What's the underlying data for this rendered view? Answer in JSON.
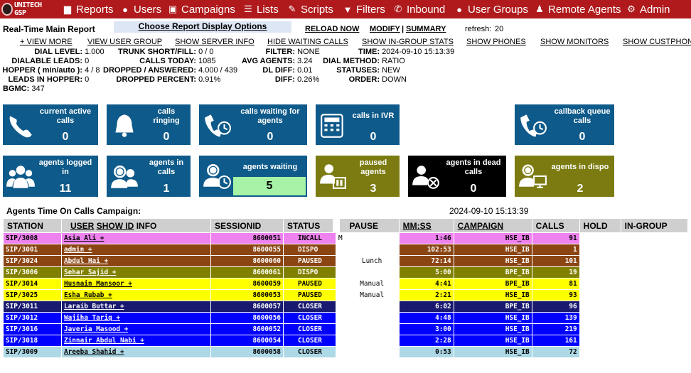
{
  "logo_text": "UNITECH GSP",
  "nav": [
    {
      "label": "Reports",
      "icon": "bar-chart-icon"
    },
    {
      "label": "Users",
      "icon": "users-icon"
    },
    {
      "label": "Campaigns",
      "icon": "campaigns-icon"
    },
    {
      "label": "Lists",
      "icon": "list-icon"
    },
    {
      "label": "Scripts",
      "icon": "edit-icon"
    },
    {
      "label": "Filters",
      "icon": "filter-icon"
    },
    {
      "label": "Inbound",
      "icon": "phone-icon"
    },
    {
      "label": "User Groups",
      "icon": "users-icon"
    },
    {
      "label": "Remote Agents",
      "icon": "remote-agent-icon"
    },
    {
      "label": "Admin",
      "icon": "gear-icon"
    }
  ],
  "report": {
    "title": "Real-Time Main Report",
    "options_btn": "Choose Report Display Options",
    "reload": "RELOAD NOW",
    "modify": "MODIFY",
    "sep": "|",
    "summary": "SUMMARY",
    "refresh_label": "refresh:",
    "refresh_val": "20",
    "links": [
      "+ VIEW MORE",
      "VIEW USER GROUP",
      "SHOW SERVER INFO",
      "HIDE WAITING CALLS",
      "SHOW IN-GROUP STATS",
      "SHOW PHONES",
      "SHOW MONITORS",
      "SHOW CUSTPHONE"
    ]
  },
  "stats": {
    "col1": [
      {
        "k": "DIAL LEVEL:",
        "v": "1.000"
      },
      {
        "k": "DIALABLE LEADS:",
        "v": "0"
      },
      {
        "k": "HOPPER ( min/auto ):",
        "v": "4 / 8"
      },
      {
        "k": "LEADS IN HOPPER:",
        "v": "0"
      }
    ],
    "col2": [
      {
        "k": "TRUNK SHORT/FILL:",
        "v": "0 / 0"
      },
      {
        "k": "CALLS TODAY:",
        "v": "1085"
      },
      {
        "k": "DROPPED / ANSWERED:",
        "v": "4.000 / 439"
      },
      {
        "k": "DROPPED PERCENT:",
        "v": "0.91%"
      }
    ],
    "col3": [
      {
        "k": "FILTER:",
        "v": "NONE"
      },
      {
        "k": "AVG AGENTS:",
        "v": "3.24"
      },
      {
        "k": "DL DIFF:",
        "v": "0.01"
      },
      {
        "k": "DIFF:",
        "v": "0.26%"
      }
    ],
    "col4": [
      {
        "k": "TIME:",
        "v": "2024-09-10 15:13:39"
      },
      {
        "k": "DIAL METHOD:",
        "v": "RATIO"
      },
      {
        "k": "STATUSES:",
        "v": "NEW"
      },
      {
        "k": "ORDER:",
        "v": "DOWN"
      }
    ],
    "bgmc_k": "BGMC:",
    "bgmc_v": "347"
  },
  "tiles_row1": [
    {
      "label": "current active calls",
      "value": "0",
      "icon": "phone-handset-icon"
    },
    {
      "label": "calls ringing",
      "value": "0",
      "icon": "bell-icon"
    },
    {
      "label": "calls waiting for agents",
      "value": "0",
      "icon": "phone-clock-icon"
    },
    {
      "label": "calls in IVR",
      "value": "0",
      "icon": "ivr-keypad-icon"
    },
    {
      "label": "callback queue calls",
      "value": "0",
      "icon": "phone-clock-icon"
    }
  ],
  "tiles_row2": [
    {
      "label": "agents logged in",
      "value": "11",
      "icon": "agents-group-icon"
    },
    {
      "label": "agents in calls",
      "value": "1",
      "icon": "agents-headset-icon"
    },
    {
      "label": "agents waiting",
      "value": "5",
      "icon": "agent-clock-icon"
    },
    {
      "label": "paused agents",
      "value": "3",
      "icon": "agent-pause-icon"
    },
    {
      "label": "agents in dead calls",
      "value": "0",
      "icon": "agent-dead-icon"
    },
    {
      "label": "agents in dispo",
      "value": "2",
      "icon": "agent-dispo-icon"
    }
  ],
  "agents_title": "Agents Time On Calls Campaign:",
  "agents_time": "2024-09-10 15:13:39",
  "table_headers": {
    "station": "STATION",
    "user": "USER",
    "show_id": "SHOW ID",
    "info": "INFO",
    "session": "SESSIONID",
    "status": "STATUS",
    "pause": "PAUSE",
    "mmss": "MM:SS",
    "campaign": "CAMPAIGN",
    "calls": "CALLS",
    "hold": "HOLD",
    "ingroup": "IN-GROUP"
  },
  "colors": {
    "incall": "#ee82ee",
    "dispo": "#8b4513",
    "paused": "#808000",
    "yellow": "#ffff00",
    "closer_dark": "#191970",
    "closer_blue": "#0000ff",
    "closer_light": "#add8e6"
  },
  "agents": [
    {
      "station": "SIP/3008",
      "user": "Asia Ali +",
      "session": "8600051",
      "status": "INCALL",
      "flag": "M",
      "pause": "",
      "mmss": "1:46",
      "campaign": "HSE_IB",
      "calls": "91",
      "bg": "#ee82ee",
      "fg": "#000"
    },
    {
      "station": "SIP/3001",
      "user": "admin +",
      "session": "8600055",
      "status": "DISPO",
      "flag": "",
      "pause": "",
      "mmss": "102:53",
      "campaign": "HSE_IB",
      "calls": "1",
      "bg": "#8b4513",
      "fg": "#fff"
    },
    {
      "station": "SIP/3024",
      "user": "Abdul Hai +",
      "session": "8600060",
      "status": "PAUSED",
      "flag": "",
      "pause": "Lunch",
      "mmss": "72:14",
      "campaign": "HSE_IB",
      "calls": "101",
      "bg": "#8b4513",
      "fg": "#fff"
    },
    {
      "station": "SIP/3006",
      "user": "Sehar Sajid +",
      "session": "8600061",
      "status": "DISPO",
      "flag": "",
      "pause": "",
      "mmss": "5:00",
      "campaign": "BPE_IB",
      "calls": "19",
      "bg": "#808000",
      "fg": "#fff"
    },
    {
      "station": "SIP/3014",
      "user": "Husnain Mansoor +",
      "session": "8600059",
      "status": "PAUSED",
      "flag": "",
      "pause": "Manual",
      "mmss": "4:41",
      "campaign": "BPE_IB",
      "calls": "81",
      "bg": "#ffff00",
      "fg": "#000"
    },
    {
      "station": "SIP/3025",
      "user": "Esha Rubab +",
      "session": "8600053",
      "status": "PAUSED",
      "flag": "",
      "pause": "Manual",
      "mmss": "2:21",
      "campaign": "HSE_IB",
      "calls": "93",
      "bg": "#ffff00",
      "fg": "#000"
    },
    {
      "station": "SIP/3011",
      "user": "Laraib Buttar +",
      "session": "8600057",
      "status": "CLOSER",
      "flag": "",
      "pause": "",
      "mmss": "6:02",
      "campaign": "BPE_IB",
      "calls": "96",
      "bg": "#191970",
      "fg": "#fff"
    },
    {
      "station": "SIP/3012",
      "user": "Wajiha Tariq +",
      "session": "8600056",
      "status": "CLOSER",
      "flag": "",
      "pause": "",
      "mmss": "4:48",
      "campaign": "HSE_IB",
      "calls": "139",
      "bg": "#0000ff",
      "fg": "#fff"
    },
    {
      "station": "SIP/3016",
      "user": "Javeria Masood +",
      "session": "8600052",
      "status": "CLOSER",
      "flag": "",
      "pause": "",
      "mmss": "3:00",
      "campaign": "HSE_IB",
      "calls": "219",
      "bg": "#0000ff",
      "fg": "#fff"
    },
    {
      "station": "SIP/3018",
      "user": "Zinnair Abdul Nabi +",
      "session": "8600054",
      "status": "CLOSER",
      "flag": "",
      "pause": "",
      "mmss": "2:28",
      "campaign": "HSE_IB",
      "calls": "161",
      "bg": "#0000ff",
      "fg": "#fff"
    },
    {
      "station": "SIP/3009",
      "user": "Areeba Shahid +",
      "session": "8600058",
      "status": "CLOSER",
      "flag": "",
      "pause": "",
      "mmss": "0:53",
      "campaign": "HSE_IB",
      "calls": "72",
      "bg": "#add8e6",
      "fg": "#000"
    }
  ]
}
